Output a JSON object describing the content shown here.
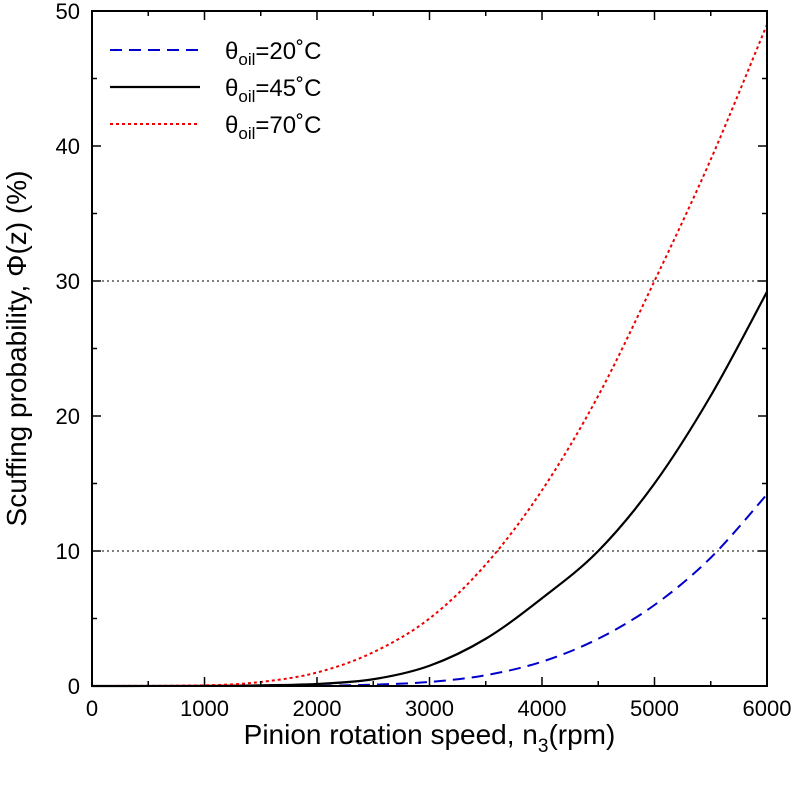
{
  "chart_data": {
    "type": "line",
    "xlabel": "Pinion rotation speed, n",
    "xlabel_sub": "3",
    "xlabel_unit": "(rpm)",
    "ylabel": "Scuffing probability, Φ(z) (%)",
    "xlim": [
      0,
      6000
    ],
    "ylim": [
      0,
      50
    ],
    "xticks": [
      0,
      1000,
      2000,
      3000,
      4000,
      5000,
      6000
    ],
    "yticks": [
      0,
      10,
      20,
      30,
      40,
      50
    ],
    "reference_lines": [
      10,
      30
    ],
    "legend_position": "top-left",
    "series": [
      {
        "name": "θoil=20˚C",
        "name_base": "θ",
        "name_sub": "oil",
        "name_rest": "=20˚C",
        "color": "#0000cc",
        "style": "dashed",
        "x": [
          0,
          1000,
          2000,
          2500,
          3000,
          3500,
          4000,
          4500,
          5000,
          5500,
          6000
        ],
        "y": [
          0,
          0,
          0.02,
          0.1,
          0.3,
          0.8,
          1.8,
          3.5,
          6.0,
          9.5,
          14.2
        ]
      },
      {
        "name": "θoil=45˚C",
        "name_base": "θ",
        "name_sub": "oil",
        "name_rest": "=45˚C",
        "color": "#000000",
        "style": "solid",
        "x": [
          0,
          1000,
          1500,
          2000,
          2500,
          3000,
          3500,
          4000,
          4500,
          5000,
          5500,
          6000
        ],
        "y": [
          0,
          0.01,
          0.05,
          0.15,
          0.5,
          1.5,
          3.5,
          6.5,
          10.0,
          15.0,
          21.5,
          29.2
        ]
      },
      {
        "name": "θoil=70˚C",
        "name_base": "θ",
        "name_sub": "oil",
        "name_rest": "=70˚C",
        "color": "#ee0000",
        "style": "dotted",
        "x": [
          0,
          1000,
          1500,
          2000,
          2500,
          3000,
          3500,
          4000,
          4500,
          5000,
          5500,
          6000
        ],
        "y": [
          0,
          0.05,
          0.3,
          1.0,
          2.5,
          5.0,
          9.0,
          14.5,
          21.5,
          30.0,
          39.0,
          49.0
        ]
      }
    ]
  }
}
